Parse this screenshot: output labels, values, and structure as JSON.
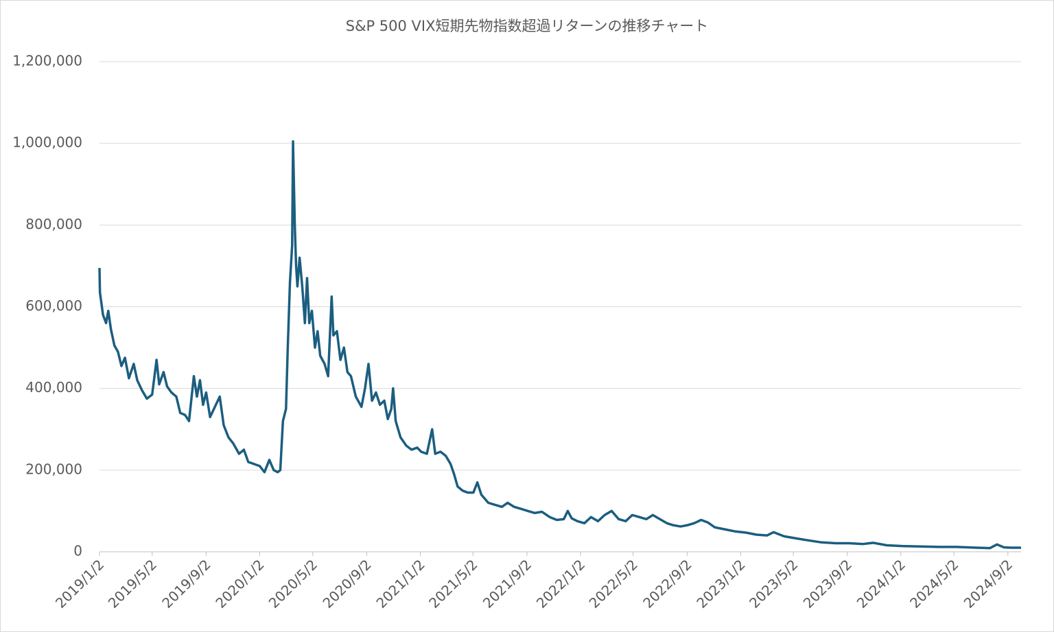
{
  "chart_data": {
    "type": "line",
    "title": "S&P 500 VIX短期先物指数超過リターンの推移チャート",
    "x": [
      "2019/1/2",
      "2019/1/3",
      "2019/1/10",
      "2019/1/17",
      "2019/1/22",
      "2019/1/28",
      "2019/2/5",
      "2019/2/13",
      "2019/2/21",
      "2019/3/1",
      "2019/3/10",
      "2019/3/21",
      "2019/3/29",
      "2019/4/9",
      "2019/4/20",
      "2019/5/2",
      "2019/5/12",
      "2019/5/18",
      "2019/5/28",
      "2019/6/5",
      "2019/6/15",
      "2019/6/26",
      "2019/7/5",
      "2019/7/16",
      "2019/7/25",
      "2019/8/5",
      "2019/8/12",
      "2019/8/19",
      "2019/8/26",
      "2019/9/2",
      "2019/9/11",
      "2019/9/22",
      "2019/10/3",
      "2019/10/12",
      "2019/10/23",
      "2019/11/3",
      "2019/11/16",
      "2019/11/27",
      "2019/12/7",
      "2019/12/20",
      "2020/1/2",
      "2020/1/13",
      "2020/1/24",
      "2020/2/3",
      "2020/2/12",
      "2020/2/18",
      "2020/2/24",
      "2020/3/2",
      "2020/3/6",
      "2020/3/11",
      "2020/3/16",
      "2020/3/18",
      "2020/3/22",
      "2020/3/25",
      "2020/3/28",
      "2020/4/2",
      "2020/4/8",
      "2020/4/14",
      "2020/4/19",
      "2020/4/24",
      "2020/4/30",
      "2020/5/7",
      "2020/5/13",
      "2020/5/19",
      "2020/5/29",
      "2020/6/6",
      "2020/6/14",
      "2020/6/18",
      "2020/6/26",
      "2020/7/4",
      "2020/7/12",
      "2020/7/20",
      "2020/7/28",
      "2020/8/8",
      "2020/8/21",
      "2020/8/29",
      "2020/9/6",
      "2020/9/14",
      "2020/9/23",
      "2020/10/2",
      "2020/10/12",
      "2020/10/20",
      "2020/10/28",
      "2020/11/1",
      "2020/11/7",
      "2020/11/18",
      "2020/12/1",
      "2020/12/13",
      "2020/12/26",
      "2021/1/4",
      "2021/1/17",
      "2021/1/29",
      "2021/2/5",
      "2021/2/17",
      "2021/3/1",
      "2021/3/12",
      "2021/3/20",
      "2021/3/28",
      "2021/4/8",
      "2021/4/20",
      "2021/5/3",
      "2021/5/12",
      "2021/5/21",
      "2021/6/6",
      "2021/6/21",
      "2021/7/7",
      "2021/7/20",
      "2021/8/4",
      "2021/8/20",
      "2021/9/4",
      "2021/9/20",
      "2021/10/6",
      "2021/10/24",
      "2021/11/9",
      "2021/11/25",
      "2021/12/4",
      "2021/12/13",
      "2021/12/26",
      "2022/1/11",
      "2022/1/26",
      "2022/2/11",
      "2022/2/26",
      "2022/3/14",
      "2022/3/30",
      "2022/4/15",
      "2022/4/30",
      "2022/5/16",
      "2022/6/1",
      "2022/6/16",
      "2022/7/2",
      "2022/7/18",
      "2022/8/2",
      "2022/8/18",
      "2022/9/2",
      "2022/9/18",
      "2022/10/4",
      "2022/10/19",
      "2022/11/4",
      "2022/11/27",
      "2022/12/20",
      "2023/1/14",
      "2023/2/7",
      "2023/3/3",
      "2023/3/18",
      "2023/4/11",
      "2023/5/8",
      "2023/6/5",
      "2023/7/6",
      "2023/8/7",
      "2023/9/6",
      "2023/10/7",
      "2023/10/31",
      "2023/12/1",
      "2024/1/6",
      "2024/2/17",
      "2024/3/29",
      "2024/5/8",
      "2024/6/22",
      "2024/7/23",
      "2024/8/8",
      "2024/8/24",
      "2024/9/8",
      "2024/10/2"
    ],
    "series": [
      {
        "name": "S&P 500 VIX短期先物指数超過リターン",
        "color": "#1b5e80",
        "values": [
          695000,
          635000,
          580000,
          560000,
          590000,
          545000,
          505000,
          490000,
          455000,
          475000,
          425000,
          460000,
          420000,
          395000,
          375000,
          385000,
          470000,
          410000,
          440000,
          405000,
          390000,
          380000,
          340000,
          335000,
          320000,
          430000,
          380000,
          420000,
          360000,
          390000,
          330000,
          355000,
          380000,
          310000,
          280000,
          265000,
          240000,
          250000,
          220000,
          215000,
          210000,
          195000,
          225000,
          200000,
          195000,
          200000,
          320000,
          350000,
          500000,
          660000,
          750000,
          1005000,
          800000,
          700000,
          650000,
          720000,
          650000,
          560000,
          670000,
          560000,
          590000,
          500000,
          540000,
          480000,
          460000,
          430000,
          625000,
          530000,
          540000,
          470000,
          500000,
          440000,
          430000,
          380000,
          355000,
          400000,
          460000,
          370000,
          390000,
          360000,
          370000,
          325000,
          350000,
          400000,
          320000,
          280000,
          260000,
          250000,
          255000,
          245000,
          240000,
          300000,
          240000,
          245000,
          235000,
          215000,
          190000,
          160000,
          150000,
          145000,
          145000,
          170000,
          140000,
          120000,
          115000,
          110000,
          120000,
          110000,
          105000,
          100000,
          95000,
          98000,
          85000,
          78000,
          80000,
          100000,
          82000,
          75000,
          70000,
          85000,
          75000,
          90000,
          100000,
          80000,
          75000,
          90000,
          85000,
          80000,
          90000,
          80000,
          70000,
          65000,
          62000,
          65000,
          70000,
          78000,
          72000,
          60000,
          55000,
          50000,
          47000,
          42000,
          40000,
          48000,
          38000,
          33000,
          28000,
          23000,
          21000,
          21000,
          19000,
          22000,
          16000,
          14000,
          13000,
          12000,
          12000,
          10000,
          9000,
          18000,
          11000,
          10000,
          10000
        ]
      }
    ],
    "xlim": [
      "2019/1/2",
      "2024/10/2"
    ],
    "xticks": [
      "2019/1/2",
      "2019/5/2",
      "2019/9/2",
      "2020/1/2",
      "2020/5/2",
      "2020/9/2",
      "2021/1/2",
      "2021/5/2",
      "2021/9/2",
      "2022/1/2",
      "2022/5/2",
      "2022/9/2",
      "2023/1/2",
      "2023/5/2",
      "2023/9/2",
      "2024/1/2",
      "2024/5/2",
      "2024/9/2"
    ],
    "ylim": [
      0,
      1200000
    ],
    "yticks": [
      0,
      {
        "value": 200000,
        "label": "200,000"
      },
      {
        "value": 400000,
        "label": "400,000"
      },
      {
        "value": 600000,
        "label": "600,000"
      },
      {
        "value": 800000,
        "label": "800,000"
      },
      {
        "value": 1000000,
        "label": "1,000,000"
      },
      {
        "value": 1200000,
        "label": "1,200,000"
      }
    ],
    "grid": true
  }
}
